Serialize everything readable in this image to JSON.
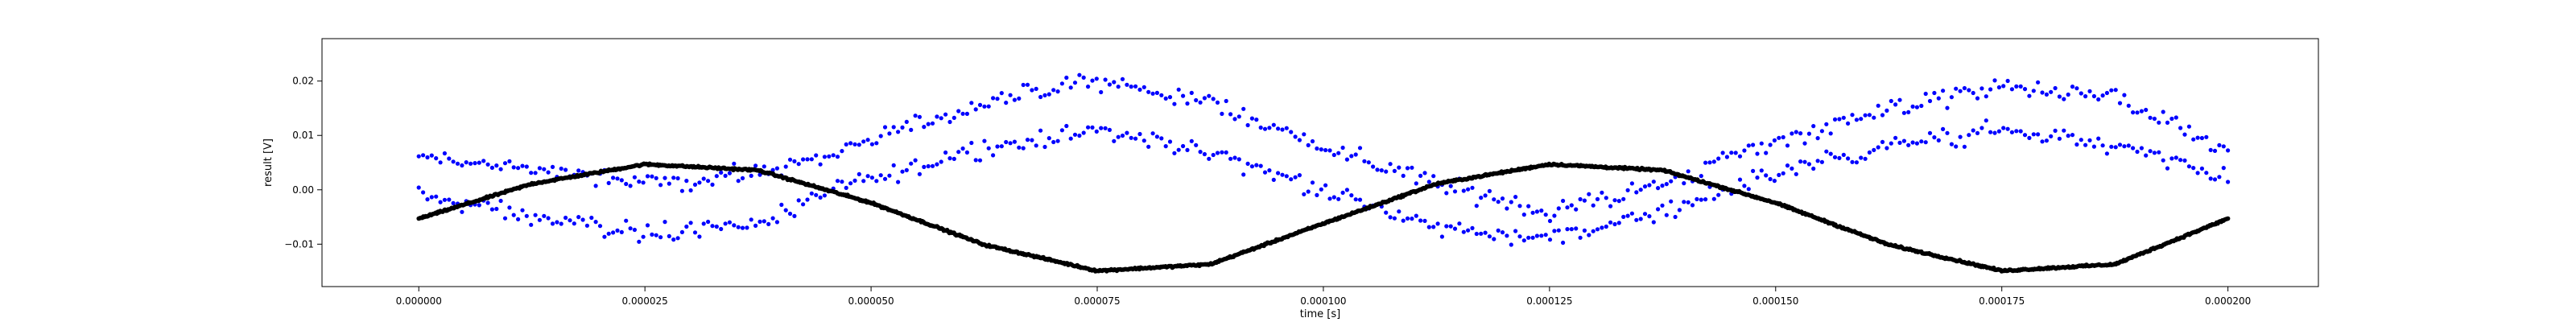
{
  "chart_data": {
    "type": "scatter",
    "title": "",
    "xlabel": "time [s]",
    "ylabel": "result [V]",
    "xlim": [
      -1.07e-05,
      0.00021
    ],
    "ylim": [
      -0.0178,
      0.0278
    ],
    "grid": false,
    "legend": "none",
    "x_ticks": [
      0.0,
      2.5e-05,
      5e-05,
      7.5e-05,
      0.0001,
      0.000125,
      0.00015,
      0.000175,
      0.0002
    ],
    "x_tick_labels": [
      "0.000000",
      "0.000025",
      "0.000050",
      "0.000075",
      "0.000100",
      "0.000125",
      "0.000150",
      "0.000175",
      "0.000200"
    ],
    "y_ticks": [
      -0.01,
      0.0,
      0.01,
      0.02
    ],
    "y_tick_labels": [
      "−0.01",
      "0.00",
      "0.01",
      "0.02"
    ],
    "series": [
      {
        "color": "#0000ff",
        "marker": "dot",
        "x": [
          0.0,
          1.25e-05,
          2.5e-05,
          3.75e-05,
          5e-05,
          6.25e-05,
          7.5e-05,
          8.75e-05,
          0.0001,
          0.0001125,
          0.000125,
          0.0001375,
          0.00015,
          0.0001625,
          0.000175,
          0.0001875,
          0.0002
        ],
        "y_upper": [
          0.006,
          0.004,
          0.001,
          0.003,
          0.009,
          0.016,
          0.02,
          0.016,
          0.008,
          0.001,
          -0.004,
          0.001,
          0.009,
          0.015,
          0.019,
          0.017,
          0.007
        ],
        "y_lower": [
          -0.001,
          -0.005,
          -0.008,
          -0.006,
          0.002,
          0.008,
          0.011,
          0.007,
          0.0,
          -0.007,
          -0.009,
          -0.004,
          0.003,
          0.008,
          0.011,
          0.008,
          0.002
        ]
      },
      {
        "color": "#000000",
        "marker": "dot",
        "x": [
          0.0,
          1.25e-05,
          2.5e-05,
          3.75e-05,
          5e-05,
          6.25e-05,
          7.5e-05,
          8.75e-05,
          0.0001,
          0.0001125,
          0.000125,
          0.0001375,
          0.00015,
          0.0001625,
          0.000175,
          0.0001875,
          0.0002
        ],
        "y": [
          -0.0053,
          0.0011,
          0.0047,
          0.0036,
          -0.0024,
          -0.0101,
          -0.0149,
          -0.0137,
          -0.0062,
          0.0011,
          0.0047,
          0.0036,
          -0.0024,
          -0.0101,
          -0.0149,
          -0.0137,
          -0.0053
        ]
      }
    ]
  }
}
